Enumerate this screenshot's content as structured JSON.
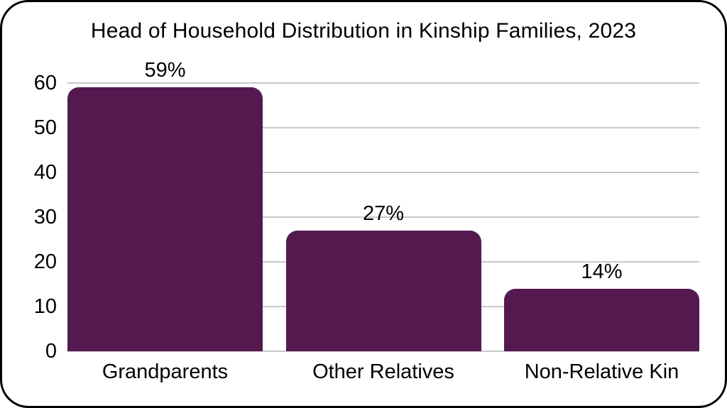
{
  "frame": {
    "background": "#ffffff",
    "border_color": "#000000"
  },
  "chart_data": {
    "type": "bar",
    "title": "Head of Household Distribution in Kinship Families, 2023",
    "categories": [
      "Grandparents",
      "Other Relatives",
      "Non-Relative Kin"
    ],
    "values": [
      59,
      27,
      14
    ],
    "data_labels": [
      "59%",
      "27%",
      "14%"
    ],
    "xlabel": "",
    "ylabel": "",
    "ylim": [
      0,
      60
    ],
    "yticks": [
      0,
      10,
      20,
      30,
      40,
      50,
      60
    ],
    "grid": true,
    "legend": false,
    "bar_color": "#541a50",
    "gridline_color": "#c9c9c9",
    "text_color": "#000000"
  }
}
